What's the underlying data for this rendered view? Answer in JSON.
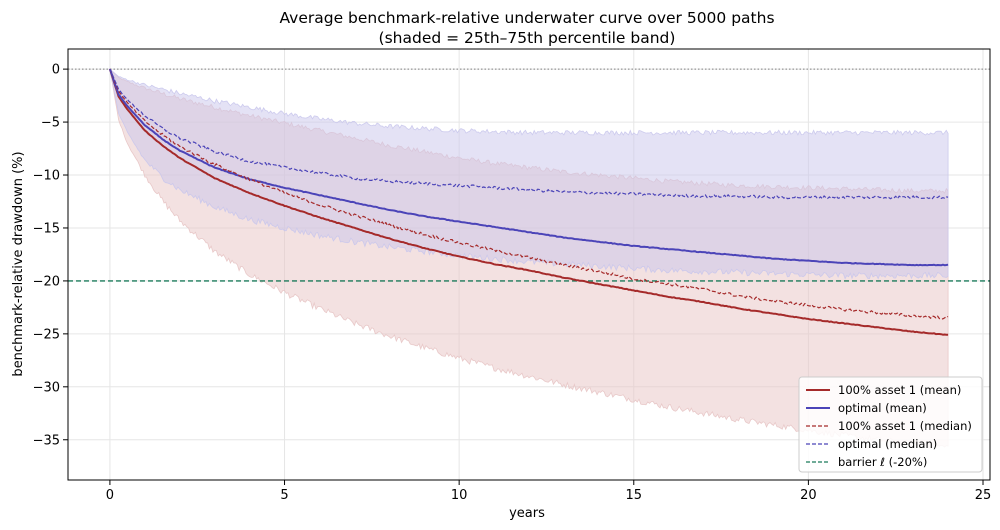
{
  "chart_data": {
    "type": "line",
    "title": "Average benchmark-relative underwater curve over 5000 paths",
    "subtitle": "(shaded = 25th–75th percentile band)",
    "xlabel": "years",
    "ylabel": "benchmark-relative drawdown (%)",
    "xlim": [
      -1.2,
      25.2
    ],
    "ylim": [
      -38.8,
      1.9
    ],
    "xticks": [
      0,
      5,
      10,
      15,
      20,
      25
    ],
    "yticks": [
      0,
      -5,
      -10,
      -15,
      -20,
      -25,
      -30,
      -35
    ],
    "grid": true,
    "legend_position": "bottom-right",
    "zero_line": {
      "y": 0,
      "color": "#808080",
      "style": "dotted"
    },
    "barrier": {
      "name": "barrier ℓ (-20%)",
      "y": -20,
      "color": "#1a7a5a",
      "style": "dashed"
    },
    "series": [
      {
        "name": "100% asset 1 (mean)",
        "color": "#a52a2a",
        "style": "solid",
        "x": [
          0,
          0.25,
          0.5,
          1,
          1.5,
          2,
          3,
          4,
          5,
          6,
          7,
          8,
          9,
          10,
          11,
          12,
          13,
          14,
          15,
          16,
          17,
          18,
          19,
          20,
          21,
          22,
          23,
          24
        ],
        "y": [
          0,
          -2.6,
          -3.8,
          -5.8,
          -7.2,
          -8.4,
          -10.3,
          -11.7,
          -12.9,
          -14.0,
          -15.0,
          -16.0,
          -16.9,
          -17.7,
          -18.4,
          -19.0,
          -19.7,
          -20.3,
          -20.9,
          -21.5,
          -22.0,
          -22.6,
          -23.1,
          -23.6,
          -24.0,
          -24.4,
          -24.8,
          -25.1
        ]
      },
      {
        "name": "optimal (mean)",
        "color": "#4b44b8",
        "style": "solid",
        "x": [
          0,
          0.25,
          0.5,
          1,
          1.5,
          2,
          3,
          4,
          5,
          6,
          7,
          8,
          9,
          10,
          11,
          12,
          13,
          14,
          15,
          16,
          17,
          18,
          19,
          20,
          21,
          22,
          23,
          24
        ],
        "y": [
          0,
          -2.4,
          -3.5,
          -5.3,
          -6.6,
          -7.7,
          -9.3,
          -10.4,
          -11.2,
          -11.9,
          -12.6,
          -13.3,
          -13.9,
          -14.4,
          -14.9,
          -15.4,
          -15.9,
          -16.3,
          -16.7,
          -17.0,
          -17.3,
          -17.6,
          -17.9,
          -18.1,
          -18.3,
          -18.4,
          -18.5,
          -18.5
        ]
      },
      {
        "name": "100% asset 1 (median)",
        "color": "#a52a2a",
        "style": "dashed",
        "x": [
          0,
          0.25,
          0.5,
          1,
          1.5,
          2,
          3,
          4,
          5,
          6,
          7,
          8,
          9,
          10,
          11,
          12,
          13,
          14,
          15,
          16,
          17,
          18,
          19,
          20,
          21,
          22,
          23,
          24
        ],
        "y": [
          0,
          -2.1,
          -3.2,
          -4.9,
          -6.2,
          -7.3,
          -9.0,
          -10.4,
          -11.7,
          -12.8,
          -13.8,
          -14.7,
          -15.6,
          -16.4,
          -17.1,
          -17.8,
          -18.5,
          -19.1,
          -19.8,
          -20.3,
          -20.8,
          -21.4,
          -21.9,
          -22.3,
          -22.7,
          -23.0,
          -23.3,
          -23.5
        ]
      },
      {
        "name": "optimal (median)",
        "color": "#4b44b8",
        "style": "dashed",
        "x": [
          0,
          0.25,
          0.5,
          1,
          1.5,
          2,
          3,
          4,
          5,
          6,
          7,
          8,
          9,
          10,
          11,
          12,
          13,
          14,
          15,
          16,
          17,
          18,
          19,
          20,
          21,
          22,
          23,
          24
        ],
        "y": [
          0,
          -1.9,
          -2.9,
          -4.4,
          -5.6,
          -6.5,
          -7.8,
          -8.7,
          -9.3,
          -9.8,
          -10.3,
          -10.6,
          -10.8,
          -11.0,
          -11.2,
          -11.4,
          -11.6,
          -11.7,
          -11.8,
          -11.9,
          -12.0,
          -12.0,
          -12.1,
          -12.1,
          -12.1,
          -12.1,
          -12.1,
          -12.1
        ]
      }
    ],
    "bands": [
      {
        "name": "100% asset 1 (25th–75th)",
        "color": "#e7c4c4",
        "opacity": 0.5,
        "x": [
          0,
          0.25,
          0.5,
          1,
          1.5,
          2,
          3,
          4,
          5,
          6,
          7,
          8,
          9,
          10,
          11,
          12,
          13,
          14,
          15,
          16,
          17,
          18,
          19,
          20,
          21,
          22,
          23,
          24
        ],
        "upper": [
          0,
          -0.8,
          -1.2,
          -1.8,
          -2.3,
          -2.8,
          -3.6,
          -4.4,
          -5.1,
          -5.8,
          -6.5,
          -7.2,
          -7.8,
          -8.4,
          -8.9,
          -9.3,
          -9.7,
          -10.0,
          -10.3,
          -10.6,
          -10.8,
          -11.0,
          -11.1,
          -11.2,
          -11.3,
          -11.4,
          -11.5,
          -11.5
        ],
        "lower": [
          0,
          -4.8,
          -7.0,
          -10.0,
          -12.4,
          -14.3,
          -17.2,
          -19.4,
          -21.1,
          -22.6,
          -24.0,
          -25.2,
          -26.3,
          -27.3,
          -28.2,
          -29.0,
          -29.8,
          -30.5,
          -31.2,
          -31.9,
          -32.5,
          -33.1,
          -33.6,
          -34.1,
          -34.6,
          -35.0,
          -35.4,
          -35.7
        ]
      },
      {
        "name": "optimal (25th–75th)",
        "color": "#c9c6ec",
        "opacity": 0.5,
        "x": [
          0,
          0.25,
          0.5,
          1,
          1.5,
          2,
          3,
          4,
          5,
          6,
          7,
          8,
          9,
          10,
          11,
          12,
          13,
          14,
          15,
          16,
          17,
          18,
          19,
          20,
          21,
          22,
          23,
          24
        ],
        "upper": [
          0,
          -0.7,
          -1.0,
          -1.5,
          -1.9,
          -2.3,
          -3.0,
          -3.6,
          -4.2,
          -4.7,
          -5.1,
          -5.4,
          -5.6,
          -5.8,
          -5.9,
          -6.0,
          -6.0,
          -6.0,
          -6.0,
          -6.0,
          -6.0,
          -6.0,
          -6.0,
          -6.0,
          -6.0,
          -6.0,
          -6.0,
          -6.0
        ],
        "lower": [
          0,
          -4.2,
          -6.0,
          -8.6,
          -10.2,
          -11.4,
          -13.0,
          -14.2,
          -15.0,
          -15.7,
          -16.3,
          -16.8,
          -17.2,
          -17.6,
          -17.9,
          -18.2,
          -18.4,
          -18.6,
          -18.8,
          -19.0,
          -19.1,
          -19.2,
          -19.3,
          -19.4,
          -19.5,
          -19.5,
          -19.5,
          -19.5
        ]
      }
    ],
    "legend": [
      {
        "label": "100% asset 1 (mean)",
        "color": "#a52a2a",
        "style": "solid"
      },
      {
        "label": "optimal (mean)",
        "color": "#4b44b8",
        "style": "solid"
      },
      {
        "label": "100% asset 1 (median)",
        "color": "#a52a2a",
        "style": "dashed"
      },
      {
        "label": "optimal (median)",
        "color": "#4b44b8",
        "style": "dashed"
      },
      {
        "label": "barrier ℓ (-20%)",
        "color": "#1a7a5a",
        "style": "dashed"
      }
    ]
  }
}
